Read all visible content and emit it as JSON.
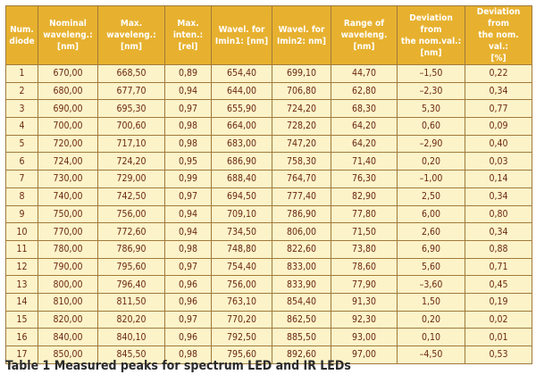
{
  "table": {
    "headers": [
      "Num.\ndiode",
      "Nominal\nwaveleng.:\n[nm]",
      "Max. waveleng.:\n[nm]",
      "Max. inten.:\n[rel]",
      "Wavel. for\nImin1: [nm]",
      "Wavel. for\nImin2: nm]",
      "Range of\nwaveleng. [nm]",
      "Deviation from\nthe nom.val.:\n[nm]",
      "Deviation from\nthe nom. val.:\n[%]"
    ],
    "rows": [
      [
        "1",
        "670,00",
        "668,50",
        "0,89",
        "654,40",
        "699,10",
        "44,70",
        "–1,50",
        "0,22"
      ],
      [
        "2",
        "680,00",
        "677,70",
        "0,94",
        "644,00",
        "706,80",
        "62,80",
        "–2,30",
        "0,34"
      ],
      [
        "3",
        "690,00",
        "695,30",
        "0,97",
        "655,90",
        "724,20",
        "68,30",
        "5,30",
        "0,77"
      ],
      [
        "4",
        "700,00",
        "700,60",
        "0,98",
        "664,00",
        "728,20",
        "64,20",
        "0,60",
        "0,09"
      ],
      [
        "5",
        "720,00",
        "717,10",
        "0,98",
        "683,00",
        "747,20",
        "64,20",
        "–2,90",
        "0,40"
      ],
      [
        "6",
        "724,00",
        "724,20",
        "0,95",
        "686,90",
        "758,30",
        "71,40",
        "0,20",
        "0,03"
      ],
      [
        "7",
        "730,00",
        "729,00",
        "0,99",
        "688,40",
        "764,70",
        "76,30",
        "–1,00",
        "0,14"
      ],
      [
        "8",
        "740,00",
        "742,50",
        "0,97",
        "694,50",
        "777,40",
        "82,90",
        "2,50",
        "0,34"
      ],
      [
        "9",
        "750,00",
        "756,00",
        "0,94",
        "709,10",
        "786,90",
        "77,80",
        "6,00",
        "0,80"
      ],
      [
        "10",
        "770,00",
        "772,60",
        "0,94",
        "734,50",
        "806,00",
        "71,50",
        "2,60",
        "0,34"
      ],
      [
        "11",
        "780,00",
        "786,90",
        "0,98",
        "748,80",
        "822,60",
        "73,80",
        "6,90",
        "0,88"
      ],
      [
        "12",
        "790,00",
        "795,60",
        "0,97",
        "754,40",
        "833,00",
        "78,60",
        "5,60",
        "0,71"
      ],
      [
        "13",
        "800,00",
        "796,40",
        "0,96",
        "756,00",
        "833,90",
        "77,90",
        "–3,60",
        "0,45"
      ],
      [
        "14",
        "810,00",
        "811,50",
        "0,96",
        "763,10",
        "854,40",
        "91,30",
        "1,50",
        "0,19"
      ],
      [
        "15",
        "820,00",
        "820,20",
        "0,97",
        "770,20",
        "862,50",
        "92,30",
        "0,20",
        "0,02"
      ],
      [
        "16",
        "840,00",
        "840,10",
        "0,96",
        "792,50",
        "885,50",
        "93,00",
        "0,10",
        "0,01"
      ],
      [
        "17",
        "850,00",
        "845,50",
        "0,98",
        "795,60",
        "892,60",
        "97,00",
        "–4,50",
        "0,53"
      ]
    ]
  },
  "caption": "Table 1 Measured peaks for spectrum LED and IR LEDs",
  "colors": {
    "header_bg": "#e7b12f",
    "cell_bg": "#fdf3c9",
    "border": "#a07a3a",
    "cell_text": "#6b2a10"
  }
}
